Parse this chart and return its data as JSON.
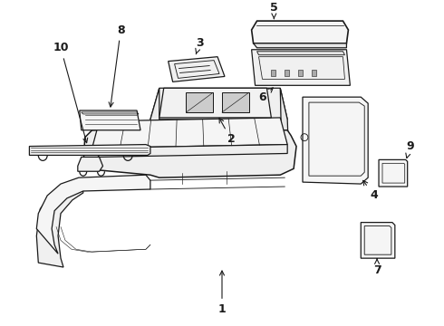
{
  "bg_color": "#ffffff",
  "line_color": "#1a1a1a",
  "fig_width": 4.9,
  "fig_height": 3.6,
  "dpi": 100,
  "label_fontsize": 9,
  "line_width": 0.9
}
